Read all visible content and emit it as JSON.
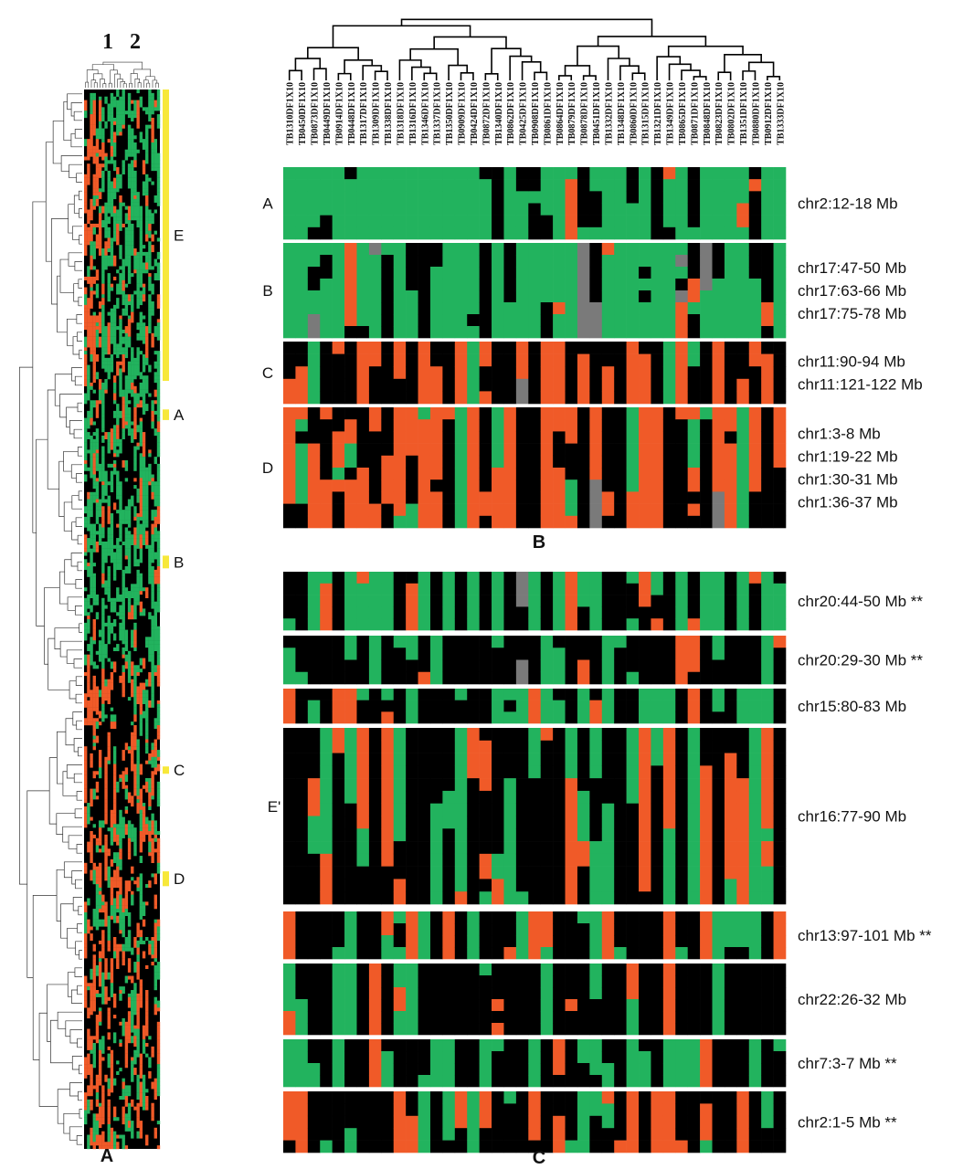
{
  "colors": {
    "gain": "#f05a28",
    "loss": "#22b35e",
    "neutral": "#000000",
    "missing": "#7a7a7a",
    "highlight": "#f7e83a",
    "background": "#ffffff"
  },
  "panel_labels": {
    "A": "A",
    "B": "B",
    "C": "C"
  },
  "overview": {
    "cluster_numbers": [
      "1",
      "2"
    ],
    "cluster_markers": [
      {
        "label": "E",
        "row_start": 0.0,
        "row_end": 0.275
      },
      {
        "label": "A",
        "row_start": 0.302,
        "row_end": 0.312
      },
      {
        "label": "B",
        "row_start": 0.44,
        "row_end": 0.452
      },
      {
        "label": "C",
        "row_start": 0.639,
        "row_end": 0.645
      },
      {
        "label": "D",
        "row_start": 0.738,
        "row_end": 0.752
      }
    ]
  },
  "samples": [
    "TB1310DF1X10",
    "TB0450DF1X10",
    "TB0873DF1X10",
    "TB0449DF1X10",
    "TB0914DF1X10",
    "TB0448DF1X10",
    "TB1317DF1X10",
    "TB1309DF1X10",
    "TB1338DF1X10",
    "TB1318DF1X10",
    "TB1316DF1X10",
    "TB1346DF1X10",
    "TB1337DF1X10",
    "TB1350DF1X10",
    "TB0909DF1X10",
    "TB0424DF1X10",
    "TB0872DF1X10",
    "TB1340DF1X10",
    "TB0862DF1X10",
    "TB0425DF1X10",
    "TB0908DF1X10",
    "TB0861DF1X10",
    "TB0864DF1X10",
    "TB0879DF1X10",
    "TB0878DF1X10",
    "TB0451DF1X10",
    "TB1332DF1X10",
    "TB1348DF1X10",
    "TB0860DF1X10",
    "TB1315DF1X10",
    "TB1321DF1X10",
    "TB1349DF1X10",
    "TB0865DF1X10",
    "TB0871DF1X10",
    "TB0848DF1X10",
    "TB0823DF1X10",
    "TB0802DF1X10",
    "TB1351DF1X10",
    "TB0880DF1X10",
    "TB0912DF1X10",
    "TB1333DF1X10"
  ],
  "panel_b": {
    "groups": [
      {
        "label": "A",
        "regions": [
          "chr2:12-18 Mb"
        ]
      },
      {
        "label": "B",
        "regions": [
          "chr17:47-50 Mb",
          "chr17:63-66 Mb",
          "chr17:75-78 Mb"
        ]
      },
      {
        "label": "C",
        "regions": [
          "chr11:90-94 Mb",
          "chr11:121-122 Mb"
        ]
      },
      {
        "label": "D",
        "regions": [
          "chr1:3-8 Mb",
          "chr1:19-22 Mb",
          "chr1:30-31 Mb",
          "chr1:36-37 Mb"
        ]
      }
    ]
  },
  "panel_c": {
    "group_label": "E'",
    "regions": [
      "chr20:44-50 Mb **",
      "chr20:29-30 Mb **",
      "chr15:80-83 Mb",
      "chr16:77-90 Mb",
      "chr13:97-101 Mb **",
      "chr22:26-32 Mb",
      "chr7:3-7 Mb **",
      "chr2:1-5 Mb **"
    ]
  }
}
